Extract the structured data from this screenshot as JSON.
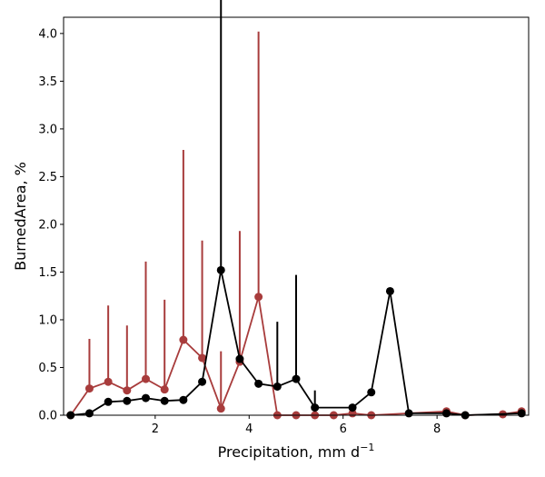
{
  "chart_data": {
    "type": "line",
    "title": "",
    "xlabel": "Precipitation,  mm d",
    "xlabel_superscript": "−1",
    "ylabel": "BurnedArea,  %",
    "xlim": [
      0.05,
      9.95
    ],
    "ylim": [
      0,
      4.17
    ],
    "xticks": [
      2,
      4,
      6,
      8
    ],
    "yticks": [
      0.0,
      0.5,
      1.0,
      1.5,
      2.0,
      2.5,
      3.0,
      3.5,
      4.0
    ],
    "ytick_labels": [
      "0.0",
      "0.5",
      "1.0",
      "1.5",
      "2.0",
      "2.5",
      "3.0",
      "3.5",
      "4.0"
    ],
    "grid": false,
    "legend": "none",
    "series": [
      {
        "color": "#a83c3c",
        "x": [
          0.2,
          0.6,
          1.0,
          1.4,
          1.8,
          2.2,
          2.6,
          3.0,
          3.4,
          3.8,
          4.2,
          4.6,
          5.0,
          5.4,
          5.8,
          6.2,
          6.6,
          8.2,
          8.6,
          9.4,
          9.8
        ],
        "y": [
          0.0,
          0.28,
          0.35,
          0.26,
          0.38,
          0.27,
          0.79,
          0.6,
          0.07,
          0.56,
          1.24,
          0.0,
          0.0,
          0.0,
          0.0,
          0.02,
          0.0,
          0.04,
          0.0,
          0.01,
          0.04
        ],
        "err_upper": [
          0.0,
          0.52,
          0.8,
          0.68,
          1.23,
          0.94,
          1.99,
          1.23,
          0.6,
          1.37,
          2.78,
          0.0,
          0.0,
          0.0,
          0.0,
          0.0,
          0.0,
          0.0,
          0.0,
          0.0,
          0.0
        ]
      },
      {
        "color": "#000000",
        "x": [
          0.2,
          0.6,
          1.0,
          1.4,
          1.8,
          2.2,
          2.6,
          3.0,
          3.4,
          3.8,
          4.2,
          4.6,
          5.0,
          5.4,
          6.2,
          6.6,
          7.0,
          7.4,
          8.2,
          8.6,
          9.8
        ],
        "y": [
          0.0,
          0.02,
          0.14,
          0.15,
          0.18,
          0.15,
          0.16,
          0.35,
          1.52,
          0.59,
          0.33,
          0.3,
          0.38,
          0.08,
          0.08,
          0.24,
          1.3,
          0.02,
          0.02,
          0.0,
          0.02
        ],
        "err_upper": [
          0.0,
          0.0,
          0.0,
          0.0,
          0.0,
          0.0,
          0.0,
          0.0,
          3.61,
          0.0,
          0.0,
          0.68,
          1.09,
          0.18,
          0.0,
          0.0,
          0.0,
          0.0,
          0.0,
          0.0,
          0.0
        ]
      }
    ]
  }
}
